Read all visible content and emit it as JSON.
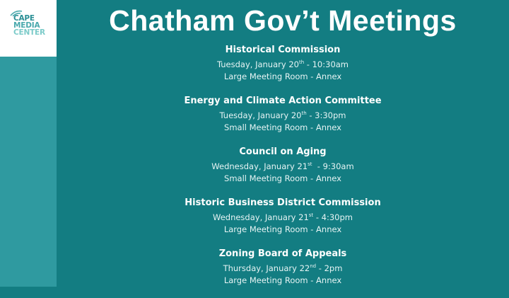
{
  "logo": {
    "lines": [
      "CAPE",
      "MEDIA",
      "CENTER"
    ]
  },
  "title": "Chatham Gov’t Meetings",
  "colors": {
    "background": "#137d82",
    "side_strip": "#2f9aa0",
    "logo_bg": "#ffffff"
  },
  "meetings": [
    {
      "name": "Historical Commission",
      "day": "Tuesday, January 20",
      "sup": "th",
      "time": " - 10:30am",
      "location": "Large Meeting Room - Annex"
    },
    {
      "name": "Energy and Climate Action Committee",
      "day": "Tuesday, January 20",
      "sup": "th",
      "time": " - 3:30pm",
      "location": "Small Meeting Room - Annex"
    },
    {
      "name": "Council on Aging",
      "day": "Wednesday, January 21",
      "sup": "st",
      "time": "  - 9:30am",
      "location": "Small Meeting Room - Annex"
    },
    {
      "name": "Historic Business District Commission",
      "day": "Wednesday, January 21",
      "sup": "st",
      "time": " - 4:30pm",
      "location": "Large Meeting Room - Annex"
    },
    {
      "name": "Zoning Board of Appeals",
      "day": "Thursday, January 22",
      "sup": "nd",
      "time": " - 2pm",
      "location": "Large Meeting Room - Annex"
    }
  ]
}
